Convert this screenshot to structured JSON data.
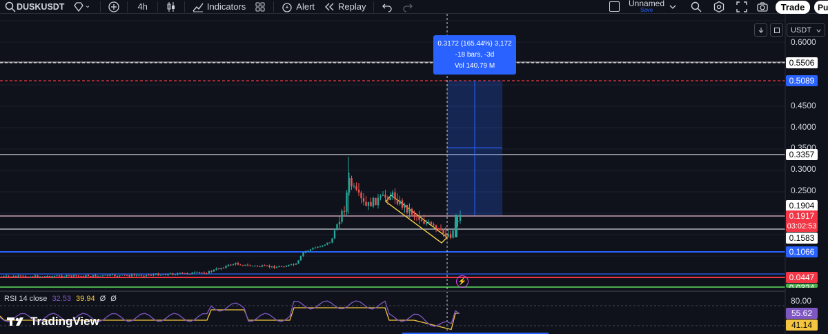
{
  "toolbar": {
    "symbol": "DUSKUSDT",
    "interval": "4h",
    "indicators_label": "Indicators",
    "alert_label": "Alert",
    "replay_label": "Replay",
    "layout_name": "Unnamed",
    "layout_status": "Save",
    "trade_label": "Trade",
    "publish_label": "Pu"
  },
  "axis": {
    "currency": "USDT",
    "ticks": [
      "0.6000",
      "0.4500",
      "0.4000",
      "0.3500",
      "0.3000",
      "0.2500",
      "80.00"
    ]
  },
  "price_tags": {
    "line_top": "0.5506",
    "target": "0.5089",
    "resistance": "0.3357",
    "high": "0.1904",
    "current": "0.1917",
    "countdown": "03:02:53",
    "low": "0.1583",
    "support_blue": "0.1066",
    "support_red": "0.0447",
    "support_green": "0.0324",
    "rsi_value": "55.62",
    "rsi_ma": "41.14"
  },
  "measure": {
    "line1": "0.3172 (165.44%) 3,172",
    "line2": "-18 bars, -3d",
    "line3": "Vol 140.79 M"
  },
  "rsi": {
    "title": "RSI 14 close",
    "v1": "32.53",
    "v2": "39.94",
    "v3": "Ø",
    "v4": "Ø"
  },
  "logo_text": "TradingView",
  "colors": {
    "background": "#0f121a",
    "up": "#26a69a",
    "down": "#ef5350",
    "accent": "#2962ff",
    "red_line": "#f23645",
    "green_line": "#4caf50",
    "rsi_line": "#7e57c2",
    "rsi_ma": "#f5c542",
    "channel": "#f5d547"
  }
}
